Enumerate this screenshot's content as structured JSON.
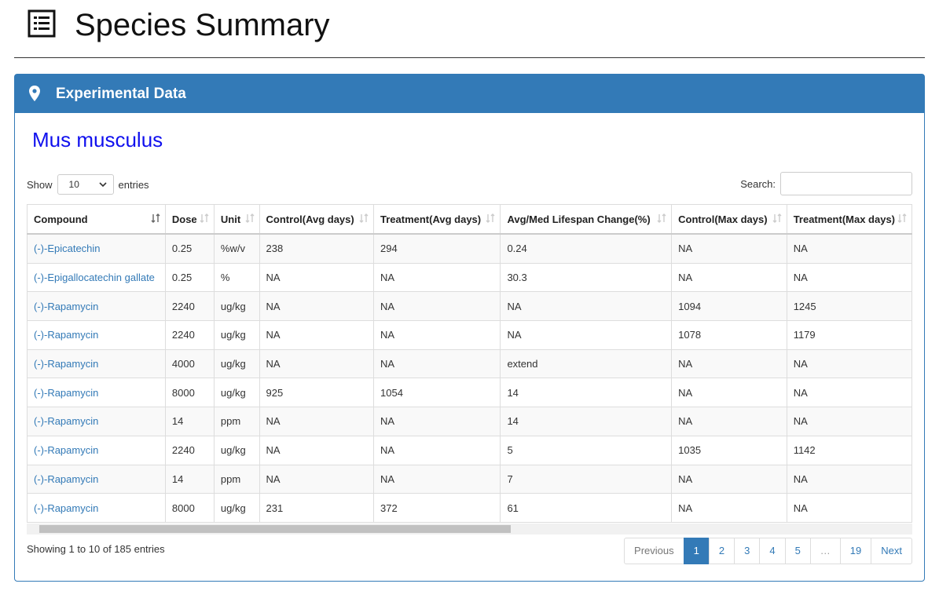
{
  "header": {
    "title": "Species Summary"
  },
  "panel": {
    "title": "Experimental Data",
    "species": "Mus musculus"
  },
  "controls": {
    "show_label": "Show",
    "page_size": "10",
    "entries_label": "entries",
    "search_label": "Search:"
  },
  "table": {
    "columns": [
      "Compound",
      "Dose",
      "Unit",
      "Control(Avg days)",
      "Treatment(Avg days)",
      "Avg/Med Lifespan Change(%)",
      "Control(Max days)",
      "Treatment(Max days)"
    ],
    "rows": [
      [
        "(-)-Epicatechin",
        "0.25",
        "%w/v",
        "238",
        "294",
        "0.24",
        "NA",
        "NA"
      ],
      [
        "(-)-Epigallocatechin gallate",
        "0.25",
        "%",
        "NA",
        "NA",
        "30.3",
        "NA",
        "NA"
      ],
      [
        "(-)-Rapamycin",
        "2240",
        "ug/kg",
        "NA",
        "NA",
        "NA",
        "1094",
        "1245"
      ],
      [
        "(-)-Rapamycin",
        "2240",
        "ug/kg",
        "NA",
        "NA",
        "NA",
        "1078",
        "1179"
      ],
      [
        "(-)-Rapamycin",
        "4000",
        "ug/kg",
        "NA",
        "NA",
        "extend",
        "NA",
        "NA"
      ],
      [
        "(-)-Rapamycin",
        "8000",
        "ug/kg",
        "925",
        "1054",
        "14",
        "NA",
        "NA"
      ],
      [
        "(-)-Rapamycin",
        "14",
        "ppm",
        "NA",
        "NA",
        "14",
        "NA",
        "NA"
      ],
      [
        "(-)-Rapamycin",
        "2240",
        "ug/kg",
        "NA",
        "NA",
        "5",
        "1035",
        "1142"
      ],
      [
        "(-)-Rapamycin",
        "14",
        "ppm",
        "NA",
        "NA",
        "7",
        "NA",
        "NA"
      ],
      [
        "(-)-Rapamycin",
        "8000",
        "ug/kg",
        "231",
        "372",
        "61",
        "NA",
        "NA"
      ]
    ]
  },
  "footer": {
    "info": "Showing 1 to 10 of 185 entries",
    "pagination": [
      "Previous",
      "1",
      "2",
      "3",
      "4",
      "5",
      "…",
      "19",
      "Next"
    ],
    "active_page": "1"
  }
}
